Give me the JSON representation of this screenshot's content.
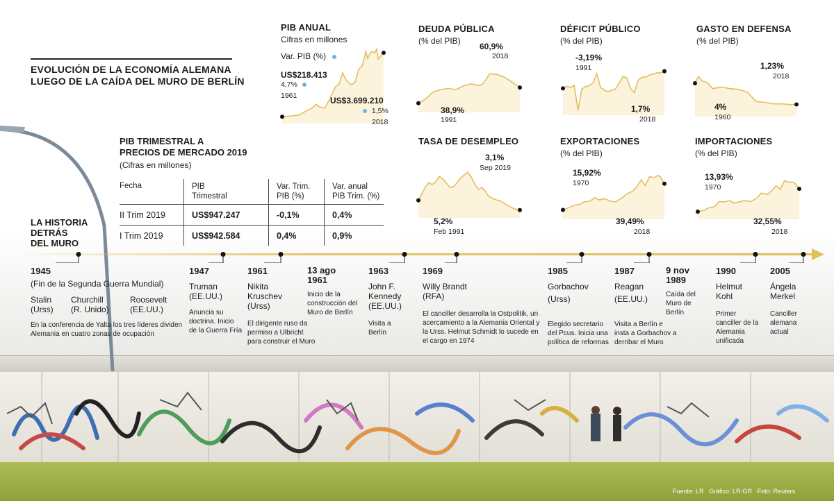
{
  "title": {
    "line1": "EVOLUCIÓN DE LA ECONOMÍA ALEMANA",
    "line2": "LUEGO DE LA CAÍDA DEL MURO DE BERLÍN"
  },
  "colors": {
    "line": "#e2be5c",
    "fill": "#fcf3dc",
    "accent": "#e2be5c",
    "dot": "#6fb3df"
  },
  "pib_anual": {
    "title": "PIB ANUAL",
    "subtitle": "Cifras en millones",
    "legend": "Var. PIB (%)",
    "start_value": "US$218.413",
    "start_pct": "4,7%",
    "start_year": "1961",
    "end_value": "US$3.699.210",
    "end_pct": "1,5%",
    "end_year": "2018"
  },
  "deuda": {
    "title": "DEUDA PÚBLICA",
    "subtitle": "(% del PIB)",
    "high": "60,9%",
    "high_label": "2018",
    "low": "38,9%",
    "low_label": "1991"
  },
  "deficit": {
    "title": "DÉFICIT PÚBLICO",
    "subtitle": "(% del PIB)",
    "low": "-3,19%",
    "low_label": "1991",
    "end": "1,7%",
    "end_label": "2018"
  },
  "defensa": {
    "title": "GASTO EN DEFENSA",
    "subtitle": "(% del PIB)",
    "end": "1,23%",
    "end_label": "2018",
    "start": "4%",
    "start_label": "1960"
  },
  "desempleo": {
    "title": "TASA DE DESEMPLEO",
    "high": "3,1%",
    "high_label": "Sep 2019",
    "low": "5,2%",
    "low_label": "Feb 1991"
  },
  "exportaciones": {
    "title": "EXPORTACIONES",
    "subtitle": "(% del PIB)",
    "start": "15,92%",
    "start_label": "1970",
    "end": "39,49%",
    "end_label": "2018"
  },
  "importaciones": {
    "title": "IMPORTACIONES",
    "subtitle": "(% del PIB)",
    "start": "13,93%",
    "start_label": "1970",
    "end": "32,55%",
    "end_label": "2018"
  },
  "pib_trimestral": {
    "title1": "PIB TRIMESTRAL A",
    "title2": "PRECIOS DE MERCADO 2019",
    "subtitle": "(Cifras en millones)",
    "headers": [
      "Fecha",
      "PIB\nTrimestral",
      "Var. Trim.\nPIB (%)",
      "Var. anual\nPIB Trim. (%)"
    ],
    "rows": [
      [
        "II Trim 2019",
        "US$947.247",
        "-0,1%",
        "0,4%"
      ],
      [
        "I Trim 2019",
        "US$942.584",
        "0,4%",
        "0,9%"
      ]
    ]
  },
  "historia": {
    "line1": "LA HISTORIA",
    "line2": "DETRÁS",
    "line3": "DEL MURO"
  },
  "timeline": {
    "e1945": {
      "year": "1945",
      "sub": "(Fin de la Segunda Guerra Mundial)",
      "p1a": "Stalin",
      "p1b": "(Urss)",
      "p2a": "Churchill",
      "p2b": "(R. Unido)",
      "p3a": "Roosevelt",
      "p3b": "(EE.UU.)",
      "desc1": "En la conferencia de Yalta los tres líderes dividen",
      "desc2": "Alemania en cuatro zonas de ocupación"
    },
    "e1947": {
      "year": "1947",
      "name": "Truman",
      "country": "(EE.UU.)",
      "d1": "Anuncia su",
      "d2": "doctrina. Inicio",
      "d3": "de la Guerra Fría"
    },
    "e1961": {
      "year": "1961",
      "name1": "Nikita",
      "name2": "Kruschev",
      "country": "(Urss)",
      "d1": "El dirigente ruso da",
      "d2": "permiso a Ulbricht",
      "d3": "para construir el Muro"
    },
    "e13ago": {
      "year1": "13 ago",
      "year2": "1961",
      "d1": "Inicio de la",
      "d2": "construcción del",
      "d3": "Muro de Berlín"
    },
    "e1963": {
      "year": "1963",
      "name1": "John F.",
      "name2": "Kennedy",
      "country": "(EE.UU.)",
      "d1": "Visita a",
      "d2": "Berlín"
    },
    "e1969": {
      "year": "1969",
      "name": "Willy Brandt",
      "country": "(RFA)",
      "d1": "El canciller desarrolla la Ostpolitik, un",
      "d2": "acercamiento a la Alemania Oriental y",
      "d3": "la Urss. Helmut Schmidt lo sucede en",
      "d4": "el cargo en 1974"
    },
    "e1985": {
      "year": "1985",
      "name": "Gorbachov",
      "country": "(Urss)",
      "d1": "Elegido secretario",
      "d2": "del Pcus. Inicia una",
      "d3": "política de reformas"
    },
    "e1987": {
      "year": "1987",
      "name": "Reagan",
      "country": "(EE.UU.)",
      "d1": "Visita a Berlín e",
      "d2": "insta a Gorbachov a",
      "d3": "derribar el Muro"
    },
    "e9nov": {
      "year1": "9 nov",
      "year2": "1989",
      "d1": "Caída del",
      "d2": "Muro de",
      "d3": "Berlín"
    },
    "e1990": {
      "year": "1990",
      "name1": "Helmut",
      "name2": "Kohl",
      "d1": "Primer",
      "d2": "canciller de la",
      "d3": "Alemania",
      "d4": "unificada"
    },
    "e2005": {
      "year": "2005",
      "name1": "Ángela",
      "name2": "Merkel",
      "d1": "Canciller",
      "d2": "alemana",
      "d3": "actual"
    }
  },
  "credits": {
    "fuente": "Fuente: LR",
    "grafico": "Gráfico: LR-GR",
    "foto": "Foto: Reuters"
  },
  "chart_data": [
    {
      "type": "area",
      "title": "PIB ANUAL",
      "subtitle": "Cifras en millones",
      "x_range": [
        1961,
        2018
      ],
      "ylim": [
        0,
        4000000
      ],
      "points": [
        [
          1961,
          218413
        ],
        [
          1965,
          250000
        ],
        [
          1970,
          300000
        ],
        [
          1972,
          390000
        ],
        [
          1975,
          560000
        ],
        [
          1978,
          700000
        ],
        [
          1980,
          900000
        ],
        [
          1982,
          750000
        ],
        [
          1985,
          680000
        ],
        [
          1988,
          1250000
        ],
        [
          1991,
          1850000
        ],
        [
          1993,
          2000000
        ],
        [
          1995,
          2600000
        ],
        [
          1997,
          2200000
        ],
        [
          2000,
          1950000
        ],
        [
          2002,
          2100000
        ],
        [
          2004,
          2800000
        ],
        [
          2006,
          3000000
        ],
        [
          2008,
          3750000
        ],
        [
          2009,
          3400000
        ],
        [
          2011,
          3750000
        ],
        [
          2013,
          3700000
        ],
        [
          2014,
          3900000
        ],
        [
          2015,
          3350000
        ],
        [
          2016,
          3450000
        ],
        [
          2017,
          3650000
        ],
        [
          2018,
          3699210
        ]
      ],
      "annotations": [
        {
          "year": 1961,
          "value": "US$218.413",
          "var_pib": "4,7%"
        },
        {
          "year": 2018,
          "value": "US$3.699.210",
          "var_pib": "1,5%"
        }
      ]
    },
    {
      "type": "area",
      "title": "DEUDA PÚBLICA",
      "subtitle": "(% del PIB)",
      "x_range": [
        1991,
        2018
      ],
      "ylim": [
        30,
        90
      ],
      "points": [
        [
          1991,
          38.9
        ],
        [
          1993,
          45
        ],
        [
          1995,
          55
        ],
        [
          1997,
          58
        ],
        [
          1999,
          59.5
        ],
        [
          2001,
          58
        ],
        [
          2003,
          63
        ],
        [
          2005,
          66
        ],
        [
          2007,
          63.5
        ],
        [
          2008,
          65
        ],
        [
          2009,
          72
        ],
        [
          2010,
          80
        ],
        [
          2012,
          79
        ],
        [
          2014,
          75
        ],
        [
          2016,
          68
        ],
        [
          2018,
          60.9
        ]
      ],
      "annotations": [
        {
          "year": 1991,
          "value": "38,9%"
        },
        {
          "year": 2018,
          "value": "60,9%"
        }
      ]
    },
    {
      "type": "area",
      "title": "DÉFICIT PÚBLICO",
      "subtitle": "(% del PIB)",
      "x_range": [
        1991,
        2018
      ],
      "ylim": [
        -10,
        3
      ],
      "points": [
        [
          1991,
          -3.19
        ],
        [
          1992,
          -2.6
        ],
        [
          1993,
          -2.9
        ],
        [
          1994,
          -2.3
        ],
        [
          1995,
          -9.4
        ],
        [
          1996,
          -3.4
        ],
        [
          1997,
          -2.7
        ],
        [
          1998,
          -2.4
        ],
        [
          1999,
          -1.6
        ],
        [
          2000,
          1.0
        ],
        [
          2001,
          -2.9
        ],
        [
          2002,
          -3.7
        ],
        [
          2003,
          -4.1
        ],
        [
          2004,
          -3.7
        ],
        [
          2005,
          -3.3
        ],
        [
          2006,
          -1.6
        ],
        [
          2007,
          0.2
        ],
        [
          2008,
          -0.2
        ],
        [
          2009,
          -3.2
        ],
        [
          2010,
          -4.4
        ],
        [
          2011,
          -0.9
        ],
        [
          2012,
          0.0
        ],
        [
          2013,
          0.0
        ],
        [
          2014,
          0.6
        ],
        [
          2015,
          0.9
        ],
        [
          2016,
          1.2
        ],
        [
          2017,
          1.2
        ],
        [
          2018,
          1.7
        ]
      ],
      "annotations": [
        {
          "year": 1991,
          "value": "-3,19%"
        },
        {
          "year": 2018,
          "value": "1,7%"
        }
      ]
    },
    {
      "type": "area",
      "title": "GASTO EN DEFENSA",
      "subtitle": "(% del PIB)",
      "x_range": [
        1960,
        2018
      ],
      "ylim": [
        0,
        6
      ],
      "points": [
        [
          1960,
          4.0
        ],
        [
          1962,
          4.9
        ],
        [
          1964,
          4.3
        ],
        [
          1967,
          4.1
        ],
        [
          1970,
          3.3
        ],
        [
          1975,
          3.5
        ],
        [
          1980,
          3.3
        ],
        [
          1985,
          3.2
        ],
        [
          1990,
          2.8
        ],
        [
          1995,
          1.6
        ],
        [
          2000,
          1.5
        ],
        [
          2005,
          1.3
        ],
        [
          2010,
          1.3
        ],
        [
          2015,
          1.2
        ],
        [
          2018,
          1.23
        ]
      ],
      "annotations": [
        {
          "year": 1960,
          "value": "4%"
        },
        {
          "year": 2018,
          "value": "1,23%"
        }
      ]
    },
    {
      "type": "area",
      "title": "TASA DE DESEMPLEO",
      "x_range": [
        "Feb 1991",
        "Sep 2019"
      ],
      "ylim": [
        2,
        14
      ],
      "points": [
        [
          1991.1,
          5.2
        ],
        [
          1992,
          6.5
        ],
        [
          1993,
          8
        ],
        [
          1994,
          9
        ],
        [
          1995,
          8.6
        ],
        [
          1996,
          9.2
        ],
        [
          1997,
          10.4
        ],
        [
          1998,
          9.8
        ],
        [
          1999,
          8.9
        ],
        [
          2000,
          8
        ],
        [
          2001,
          8.1
        ],
        [
          2002,
          9
        ],
        [
          2003,
          10
        ],
        [
          2004,
          10.7
        ],
        [
          2005,
          11.3
        ],
        [
          2006,
          10.2
        ],
        [
          2007,
          8.7
        ],
        [
          2008,
          7.5
        ],
        [
          2009,
          8
        ],
        [
          2010,
          7.1
        ],
        [
          2011,
          6
        ],
        [
          2012,
          5.6
        ],
        [
          2013,
          5.3
        ],
        [
          2014,
          5.1
        ],
        [
          2015,
          4.7
        ],
        [
          2016,
          4.2
        ],
        [
          2017,
          3.8
        ],
        [
          2018,
          3.4
        ],
        [
          2019.7,
          3.1
        ]
      ],
      "annotations": [
        {
          "date": "Feb 1991",
          "value": "5,2%"
        },
        {
          "date": "Sep 2019",
          "value": "3,1%"
        }
      ]
    },
    {
      "type": "area",
      "title": "EXPORTACIONES",
      "subtitle": "(% del PIB)",
      "x_range": [
        1970,
        2018
      ],
      "ylim": [
        10,
        50
      ],
      "points": [
        [
          1970,
          15.92
        ],
        [
          1973,
          18
        ],
        [
          1975,
          20
        ],
        [
          1978,
          21
        ],
        [
          1980,
          23
        ],
        [
          1983,
          24
        ],
        [
          1985,
          27
        ],
        [
          1987,
          25
        ],
        [
          1990,
          26
        ],
        [
          1992,
          24
        ],
        [
          1995,
          23
        ],
        [
          1998,
          27
        ],
        [
          2000,
          30
        ],
        [
          2003,
          33
        ],
        [
          2005,
          37
        ],
        [
          2007,
          43
        ],
        [
          2009,
          38
        ],
        [
          2011,
          46
        ],
        [
          2013,
          45
        ],
        [
          2015,
          47
        ],
        [
          2016,
          46
        ],
        [
          2018,
          39.49
        ]
      ],
      "annotations": [
        {
          "year": 1970,
          "value": "15,92%"
        },
        {
          "year": 2018,
          "value": "39,49%"
        }
      ]
    },
    {
      "type": "area",
      "title": "IMPORTACIONES",
      "subtitle": "(% del PIB)",
      "x_range": [
        1970,
        2018
      ],
      "ylim": [
        10,
        45
      ],
      "points": [
        [
          1970,
          13.93
        ],
        [
          1973,
          15
        ],
        [
          1975,
          17
        ],
        [
          1978,
          18
        ],
        [
          1980,
          22
        ],
        [
          1983,
          22
        ],
        [
          1985,
          23
        ],
        [
          1987,
          21
        ],
        [
          1990,
          22
        ],
        [
          1992,
          23
        ],
        [
          1995,
          22
        ],
        [
          1998,
          25
        ],
        [
          2000,
          29
        ],
        [
          2003,
          28
        ],
        [
          2005,
          31
        ],
        [
          2007,
          35
        ],
        [
          2009,
          32
        ],
        [
          2011,
          39
        ],
        [
          2013,
          38
        ],
        [
          2015,
          38
        ],
        [
          2016,
          37
        ],
        [
          2018,
          32.55
        ]
      ],
      "annotations": [
        {
          "year": 1970,
          "value": "13,93%"
        },
        {
          "year": 2018,
          "value": "32,55%"
        }
      ]
    }
  ]
}
